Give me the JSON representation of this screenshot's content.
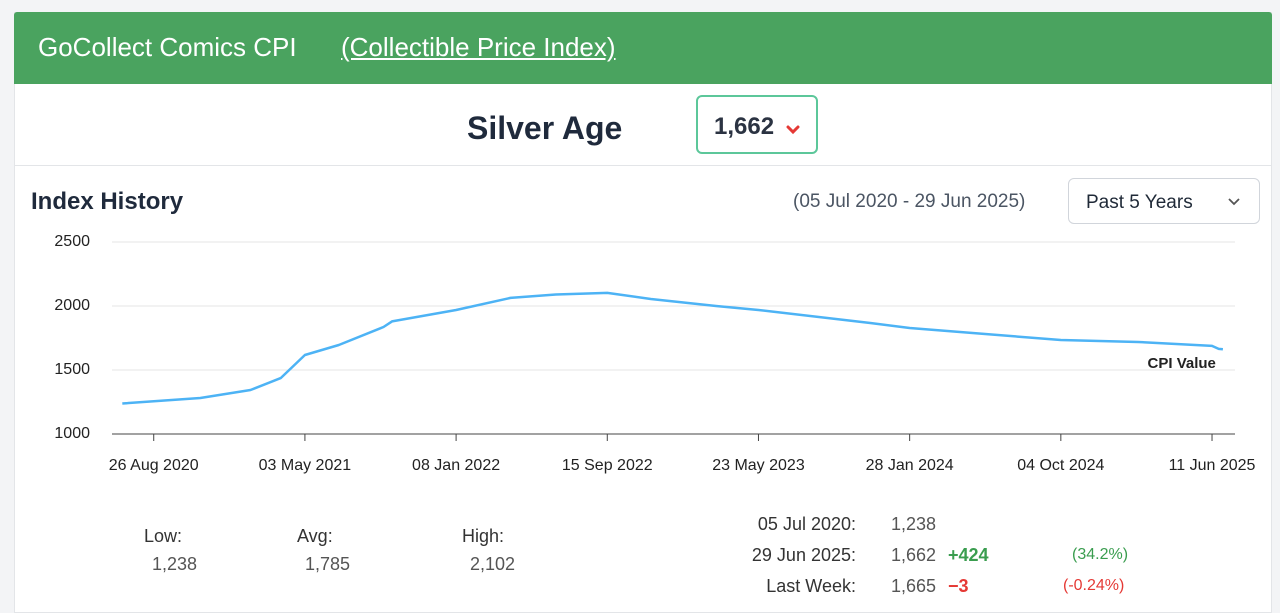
{
  "header": {
    "title": "GoCollect Comics CPI",
    "link": "(Collectible Price Index)"
  },
  "category": "Silver Age",
  "current_value": "1,662",
  "section_title": "Index History",
  "date_range": "(05 Jul 2020 - 29 Jun 2025)",
  "dropdown": "Past 5 Years",
  "stats": [
    {
      "label": "Low:",
      "value": "1,238"
    },
    {
      "label": "Avg:",
      "value": "1,785"
    },
    {
      "label": "High:",
      "value": "2,102"
    }
  ],
  "changes": [
    {
      "label": "05 Jul 2020:",
      "value": "1,238"
    },
    {
      "label": "29 Jun 2025:",
      "value": "1,662",
      "change": "+424",
      "percent": "(34.2%)"
    },
    {
      "label": "Last Week:",
      "value": "1,665",
      "change": "−3",
      "percent": "(-0.24%)"
    }
  ],
  "chart_data": {
    "type": "line",
    "x": [
      "2020-07-05",
      "2020-11-11",
      "2021-02-02",
      "2021-03-24",
      "2021-05-03",
      "2021-06-28",
      "2021-09-10",
      "2021-09-24",
      "2022-01-08",
      "2022-04-08",
      "2022-06-22",
      "2022-09-15",
      "2022-11-26",
      "2023-03-14",
      "2023-05-23",
      "2023-11-24",
      "2024-01-28",
      "2024-06-01",
      "2024-10-04",
      "2025-02-09",
      "2025-06-11",
      "2025-06-22",
      "2025-06-29"
    ],
    "series": [
      {
        "name": "CPI Value",
        "color": "#4db3f5",
        "values": [
          1238,
          1281,
          1344,
          1437,
          1617,
          1695,
          1836,
          1880,
          1969,
          2063,
          2090,
          2102,
          2055,
          2000,
          1969,
          1867,
          1828,
          1781,
          1734,
          1719,
          1688,
          1665,
          1662
        ]
      }
    ],
    "xlim": [
      "2020-06-18",
      "2025-07-19"
    ],
    "xticks": [
      {
        "value": "2020-08-26",
        "label": "26 Aug 2020"
      },
      {
        "value": "2021-05-03",
        "label": "03 May 2021"
      },
      {
        "value": "2022-01-08",
        "label": "08 Jan 2022"
      },
      {
        "value": "2022-09-15",
        "label": "15 Sep 2022"
      },
      {
        "value": "2023-05-23",
        "label": "23 May 2023"
      },
      {
        "value": "2024-01-28",
        "label": "28 Jan 2024"
      },
      {
        "value": "2024-10-04",
        "label": "04 Oct 2024"
      },
      {
        "value": "2025-06-11",
        "label": "11 Jun 2025"
      }
    ],
    "ylim": [
      1000,
      2500
    ],
    "yticks": [
      1000,
      1500,
      2000,
      2500
    ],
    "grid": true
  }
}
